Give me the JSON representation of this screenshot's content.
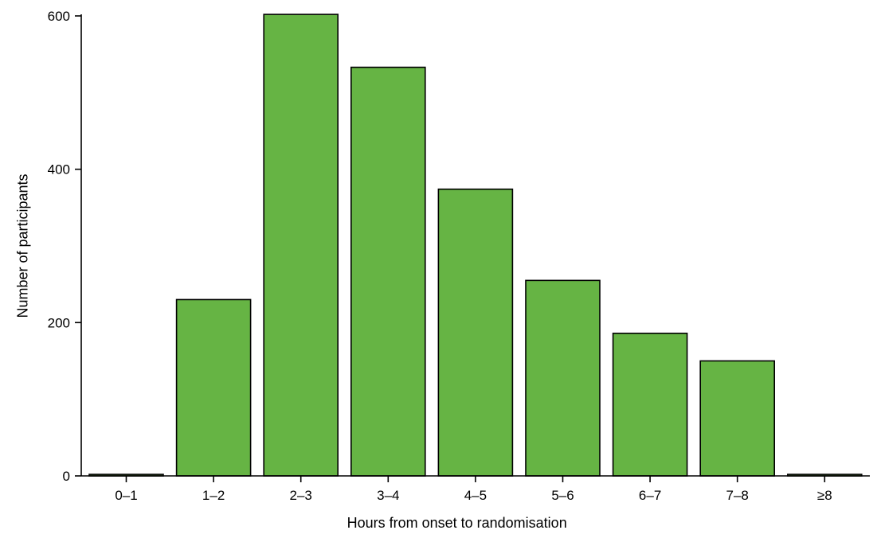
{
  "chart_data": {
    "type": "bar",
    "title": "",
    "categories": [
      "0–1",
      "1–2",
      "2–3",
      "3–4",
      "4–5",
      "5–6",
      "6–7",
      "7–8",
      "≥8"
    ],
    "values": [
      2,
      230,
      602,
      533,
      374,
      255,
      186,
      150,
      2
    ],
    "xlabel": "Hours from onset to randomisation",
    "ylabel": "Number of participants",
    "ylim": [
      0,
      600
    ],
    "yticks": [
      0,
      200,
      400,
      600
    ],
    "grid": false,
    "legend": "none",
    "bar_color": "#66b444",
    "edge_color": "#000000"
  }
}
